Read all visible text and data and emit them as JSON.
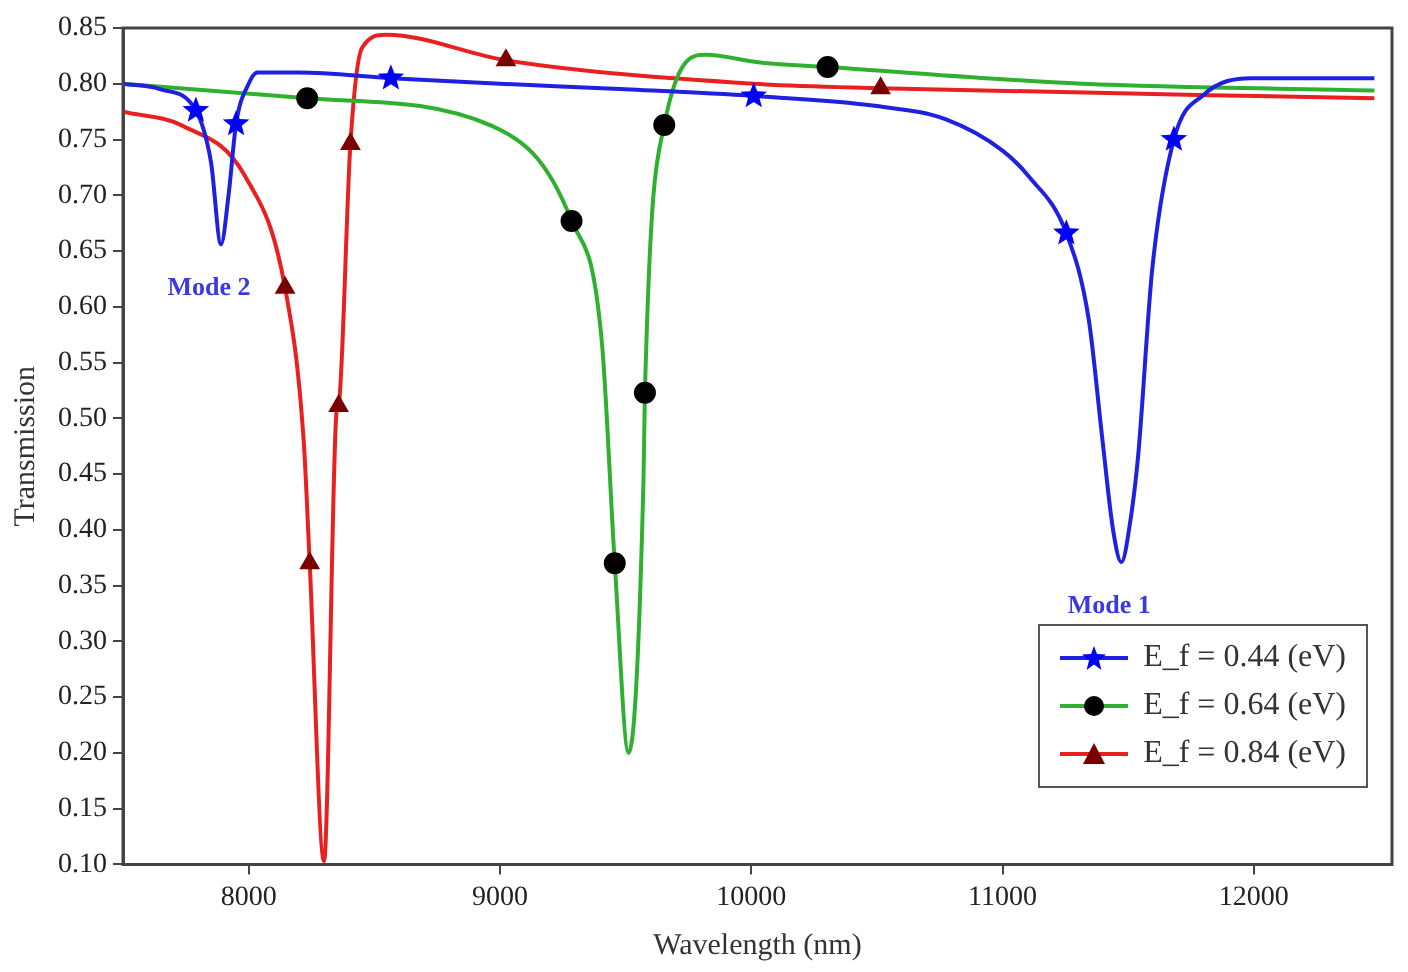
{
  "chart_data": {
    "type": "line",
    "xlabel": "Wavelength (nm)",
    "ylabel": "Transmission",
    "xlim": [
      7500,
      12550
    ],
    "ylim": [
      0.1,
      0.85
    ],
    "xticks": [
      8000,
      9000,
      10000,
      11000,
      12000
    ],
    "yticks": [
      {
        "value": 0.1,
        "label": "0.10"
      },
      {
        "value": 0.15,
        "label": "0.15"
      },
      {
        "value": 0.2,
        "label": "0.20"
      },
      {
        "value": 0.25,
        "label": "0.25"
      },
      {
        "value": 0.3,
        "label": "0.30"
      },
      {
        "value": 0.35,
        "label": "0.35"
      },
      {
        "value": 0.4,
        "label": "0.40"
      },
      {
        "value": 0.45,
        "label": "0.45"
      },
      {
        "value": 0.5,
        "label": "0.50"
      },
      {
        "value": 0.55,
        "label": "0.55"
      },
      {
        "value": 0.6,
        "label": "0.60"
      },
      {
        "value": 0.65,
        "label": "0.65"
      },
      {
        "value": 0.7,
        "label": "0.70"
      },
      {
        "value": 0.75,
        "label": "0.75"
      },
      {
        "value": 0.8,
        "label": "0.80"
      },
      {
        "value": 0.85,
        "label": "0.85"
      }
    ],
    "grid": false,
    "legend": "bottom right",
    "series": [
      {
        "type": "line",
        "name": "E_f = 0.44 (eV)",
        "color": "#2020e0",
        "marker": "none",
        "x": [
          7500,
          7650,
          7790,
          7850,
          7890,
          7920,
          7950,
          8000,
          8035,
          8200,
          8566,
          9000,
          9500,
          10010,
          10500,
          10775,
          11000,
          11104,
          11254,
          11343,
          11398,
          11440,
          11473,
          11510,
          11540,
          11596,
          11682,
          11800,
          11990,
          12480
        ],
        "values": [
          0.8,
          0.795,
          0.776,
          0.73,
          0.656,
          0.7,
          0.764,
          0.8,
          0.81,
          0.81,
          0.805,
          0.8,
          0.795,
          0.789,
          0.78,
          0.768,
          0.74,
          0.717,
          0.666,
          0.589,
          0.48,
          0.4,
          0.371,
          0.41,
          0.467,
          0.634,
          0.75,
          0.79,
          0.805,
          0.805
        ]
      },
      {
        "type": "line",
        "name": "E_f = 0.64 (eV)",
        "color": "#30b030",
        "marker": "none",
        "x": [
          7500,
          8233,
          8970,
          9285,
          9405,
          9457,
          9512,
          9571,
          9577,
          9654,
          9818,
          10036,
          10304,
          11320,
          12480
        ],
        "values": [
          0.8,
          0.787,
          0.762,
          0.677,
          0.57,
          0.37,
          0.2,
          0.442,
          0.523,
          0.763,
          0.826,
          0.819,
          0.815,
          0.8,
          0.794
        ]
      },
      {
        "type": "line",
        "name": "E_f = 0.84 (eV)",
        "color": "#e82020",
        "marker": "none",
        "x": [
          7500,
          7740,
          7986,
          8145,
          8219,
          8243,
          8300,
          8350,
          8358,
          8405,
          8451,
          8546,
          9024,
          10010,
          10515,
          12480
        ],
        "values": [
          0.775,
          0.762,
          0.717,
          0.617,
          0.48,
          0.37,
          0.103,
          0.506,
          0.511,
          0.746,
          0.832,
          0.844,
          0.821,
          0.8,
          0.796,
          0.787
        ]
      },
      {
        "type": "scatter",
        "color": "#0000ff",
        "marker": "star",
        "x": [
          7790,
          7950,
          8566,
          10010,
          11254,
          11682
        ],
        "values": [
          0.776,
          0.764,
          0.805,
          0.789,
          0.666,
          0.75
        ]
      },
      {
        "type": "scatter",
        "color": "#000000",
        "marker": "circle",
        "x": [
          8233,
          9285,
          9457,
          9577,
          9654,
          10304
        ],
        "values": [
          0.787,
          0.677,
          0.37,
          0.523,
          0.763,
          0.815
        ]
      },
      {
        "type": "scatter",
        "color": "#7a0000",
        "marker": "triangle",
        "x": [
          8145,
          8243,
          8358,
          8405,
          9024,
          10515
        ],
        "values": [
          0.617,
          0.37,
          0.511,
          0.746,
          0.821,
          0.796
        ]
      }
    ],
    "annotations": [
      {
        "text": "Mode 2",
        "x": 7890,
        "y": 0.656
      },
      {
        "text": "Mode 1",
        "x": 11473,
        "y": 0.371
      }
    ]
  }
}
